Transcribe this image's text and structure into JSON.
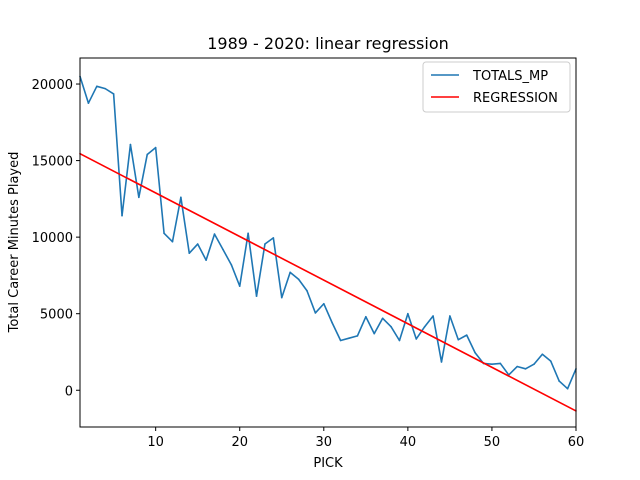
{
  "chart_data": {
    "type": "line",
    "title": "1989 - 2020: linear regression",
    "xlabel": "PICK",
    "ylabel": "Total Career Minutes Played",
    "xlim": [
      1,
      60
    ],
    "ylim": [
      -2400,
      21700
    ],
    "xticks": [
      10,
      20,
      30,
      40,
      50,
      60
    ],
    "yticks": [
      0,
      5000,
      10000,
      15000,
      20000
    ],
    "grid": false,
    "legend_position": "top-right",
    "series": [
      {
        "name": "TOTALS_MP",
        "color": "#1f77b4",
        "x": [
          1,
          2,
          3,
          4,
          5,
          6,
          7,
          8,
          9,
          10,
          11,
          12,
          13,
          14,
          15,
          16,
          17,
          18,
          19,
          20,
          21,
          22,
          23,
          24,
          25,
          26,
          27,
          28,
          29,
          30,
          31,
          32,
          33,
          34,
          35,
          36,
          37,
          38,
          39,
          40,
          41,
          42,
          43,
          44,
          45,
          46,
          47,
          48,
          49,
          50,
          51,
          52,
          53,
          54,
          55,
          56,
          57,
          58,
          59,
          60
        ],
        "values": [
          20500,
          18750,
          19850,
          19700,
          19350,
          11400,
          16050,
          12600,
          15400,
          15850,
          10250,
          9700,
          12600,
          8950,
          9550,
          8500,
          10200,
          9200,
          8200,
          6800,
          10250,
          6150,
          9550,
          9950,
          6050,
          7700,
          7250,
          6500,
          5050,
          5650,
          4400,
          3250,
          3400,
          3550,
          4800,
          3700,
          4700,
          4150,
          3250,
          5000,
          3350,
          4150,
          4850,
          1850,
          4850,
          3300,
          3600,
          2450,
          1750,
          1700,
          1750,
          1000,
          1550,
          1400,
          1700,
          2350,
          1900,
          600,
          100,
          1400
        ]
      },
      {
        "name": "REGRESSION",
        "color": "#ff0000",
        "x": [
          1,
          60
        ],
        "values": [
          15450,
          -1350
        ]
      }
    ]
  }
}
